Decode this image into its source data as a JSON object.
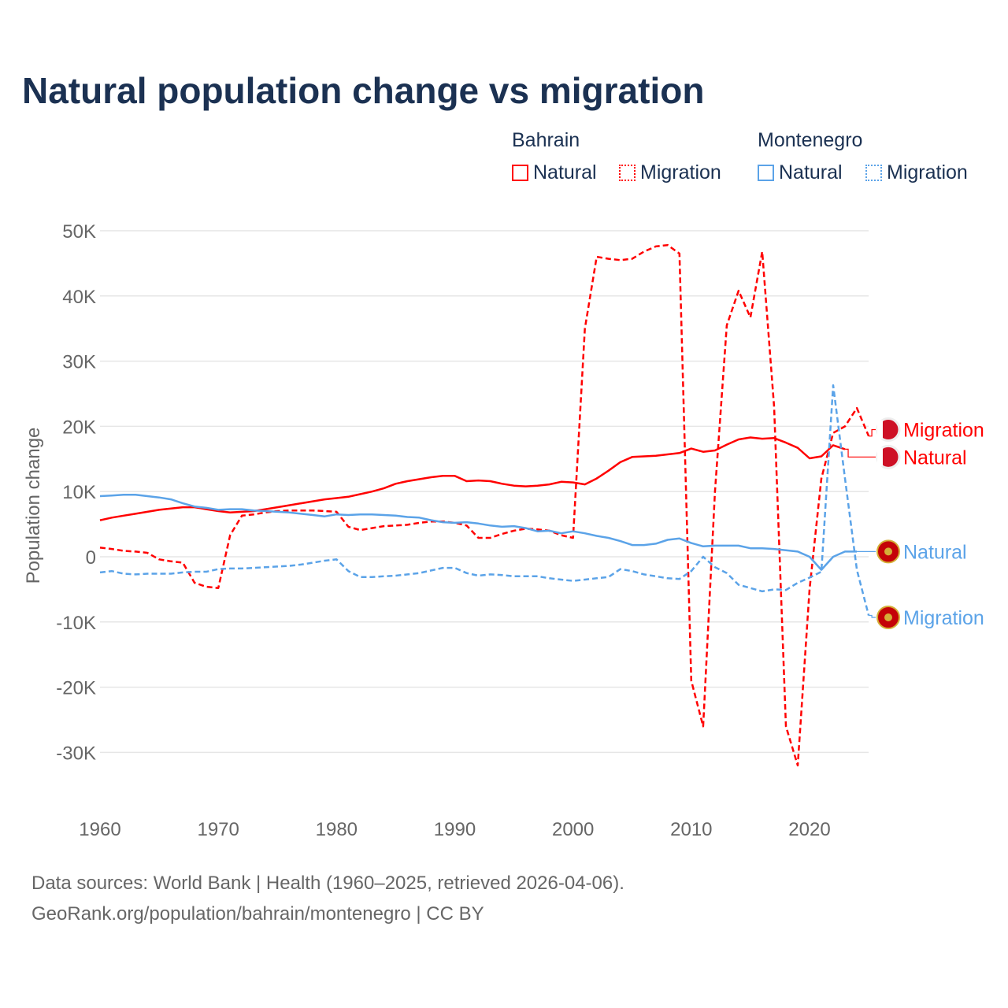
{
  "chart_data": {
    "type": "line",
    "title": "Natural population change vs migration",
    "xlabel": "",
    "ylabel": "Population change",
    "xlim": [
      1960,
      2025
    ],
    "ylim": [
      -35000,
      50000
    ],
    "y_ticks": [
      50000,
      40000,
      30000,
      20000,
      10000,
      0,
      -10000,
      -20000,
      -30000
    ],
    "y_tick_labels": [
      "50K",
      "40K",
      "30K",
      "20K",
      "10K",
      "0",
      "-10K",
      "-20K",
      "-30K"
    ],
    "x_ticks": [
      1960,
      1970,
      1980,
      1990,
      2000,
      2010,
      2020
    ],
    "x_tick_labels": [
      "1960",
      "1970",
      "1980",
      "1990",
      "2000",
      "2010",
      "2020"
    ],
    "grid": true,
    "legend": {
      "placement": "top-right",
      "groups": [
        {
          "name": "Bahrain",
          "items": [
            "Natural",
            "Migration"
          ]
        },
        {
          "name": "Montenegro",
          "items": [
            "Natural",
            "Migration"
          ]
        }
      ]
    },
    "series": [
      {
        "country": "Bahrain",
        "name": "Natural",
        "color": "#ff0000",
        "dashed": false,
        "start": 1960,
        "values": [
          5600,
          6000,
          6300,
          6600,
          6900,
          7200,
          7400,
          7600,
          7600,
          7300,
          7000,
          6800,
          6900,
          7000,
          7300,
          7600,
          7900,
          8200,
          8500,
          8800,
          9000,
          9200,
          9600,
          10000,
          10500,
          11200,
          11600,
          11900,
          12200,
          12400,
          12400,
          11600,
          11700,
          11600,
          11200,
          10900,
          10800,
          10900,
          11100,
          11500,
          11400,
          11100,
          12000,
          13200,
          14500,
          15300,
          15400,
          15500,
          15700,
          15900,
          16600,
          16100,
          16300,
          17200,
          18000,
          18300,
          18100,
          18200,
          17500,
          16700,
          15100,
          15400,
          17100,
          16500
        ]
      },
      {
        "country": "Bahrain",
        "name": "Migration",
        "color": "#ff0000",
        "dashed": true,
        "start": 1960,
        "values": [
          1400,
          1200,
          900,
          800,
          600,
          -400,
          -700,
          -900,
          -4000,
          -4600,
          -4800,
          3300,
          6300,
          6500,
          6800,
          7000,
          7100,
          7100,
          7100,
          7000,
          6900,
          4600,
          4100,
          4400,
          4700,
          4800,
          4900,
          5200,
          5400,
          5400,
          5200,
          4800,
          2900,
          2900,
          3500,
          4000,
          4300,
          4200,
          4000,
          3300,
          2900,
          35000,
          46000,
          45700,
          45500,
          45700,
          46800,
          47600,
          47800,
          46500,
          -19000,
          -26000,
          10000,
          35500,
          40800,
          36700,
          46800,
          23000,
          -26000,
          -32000,
          -5000,
          12000,
          19000,
          20000,
          22800,
          18500
        ]
      },
      {
        "country": "Montenegro",
        "name": "Natural",
        "color": "#5ba3e8",
        "dashed": false,
        "start": 1960,
        "values": [
          9300,
          9400,
          9500,
          9500,
          9300,
          9100,
          8800,
          8200,
          7700,
          7500,
          7200,
          7300,
          7300,
          7100,
          7000,
          6900,
          6800,
          6600,
          6400,
          6200,
          6500,
          6400,
          6500,
          6500,
          6400,
          6300,
          6100,
          6000,
          5600,
          5300,
          5200,
          5300,
          5100,
          4800,
          4600,
          4700,
          4400,
          3900,
          4000,
          3600,
          3900,
          3600,
          3200,
          2900,
          2400,
          1800,
          1800,
          2000,
          2600,
          2800,
          2100,
          1600,
          1700,
          1700,
          1700,
          1300,
          1300,
          1200,
          1000,
          800,
          0,
          -2000,
          0,
          800,
          800
        ]
      },
      {
        "country": "Montenegro",
        "name": "Migration",
        "color": "#5ba3e8",
        "dashed": true,
        "start": 1960,
        "values": [
          -2400,
          -2200,
          -2600,
          -2700,
          -2600,
          -2600,
          -2600,
          -2400,
          -2300,
          -2300,
          -1900,
          -1800,
          -1800,
          -1700,
          -1600,
          -1500,
          -1400,
          -1200,
          -900,
          -600,
          -400,
          -2200,
          -3100,
          -3100,
          -3000,
          -2900,
          -2700,
          -2500,
          -2100,
          -1700,
          -1700,
          -2500,
          -2900,
          -2700,
          -2800,
          -3000,
          -3000,
          -3000,
          -3300,
          -3500,
          -3700,
          -3500,
          -3300,
          -3100,
          -1900,
          -2200,
          -2700,
          -3000,
          -3300,
          -3400,
          -2200,
          0,
          -1600,
          -2500,
          -4300,
          -4800,
          -5300,
          -5000,
          -5100,
          -4000,
          -3200,
          -2300,
          26300,
          12000,
          -2000,
          -9000
        ]
      }
    ],
    "end_labels": [
      {
        "text": "Migration",
        "country": "Bahrain",
        "value": 19500
      },
      {
        "text": "Natural",
        "country": "Bahrain",
        "value": 15300
      },
      {
        "text": "Natural",
        "country": "Montenegro",
        "value": 800
      },
      {
        "text": "Migration",
        "country": "Montenegro",
        "value": -9300
      }
    ]
  },
  "footer": {
    "line1": "Data sources: World Bank | Health (1960–2025, retrieved 2026-04-06).",
    "line2": "GeoRank.org/population/bahrain/montenegro | CC BY"
  }
}
